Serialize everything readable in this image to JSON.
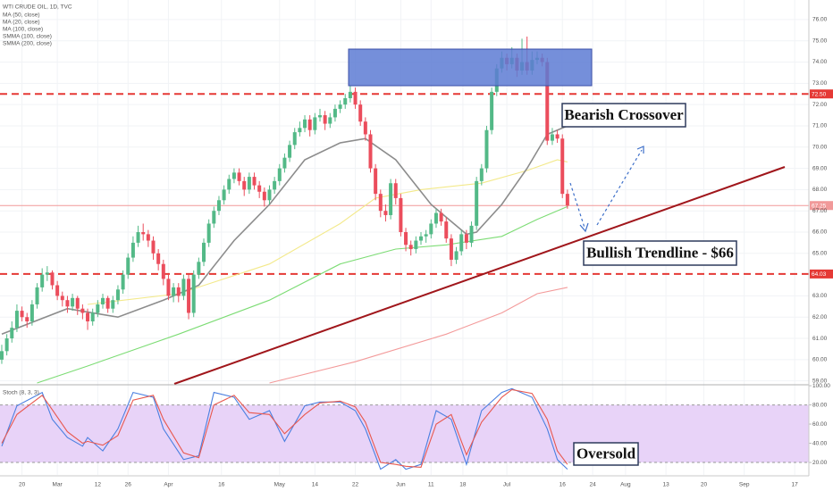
{
  "chart_data": {
    "type": "candlestick",
    "title": "WTI CRUDE OIL, 1D, TVC",
    "up_color": "#53b987",
    "down_color": "#eb4d5c",
    "grid": true,
    "xlim": [
      -0.35,
      159.8
    ],
    "xticks": [
      {
        "value": 4,
        "label": "20"
      },
      {
        "value": 11,
        "label": "Mar"
      },
      {
        "value": 19,
        "label": "12"
      },
      {
        "value": 25,
        "label": "26"
      },
      {
        "value": 33,
        "label": "Apr"
      },
      {
        "value": 43.5,
        "label": "16"
      },
      {
        "value": 55,
        "label": "May"
      },
      {
        "value": 62,
        "label": "14"
      },
      {
        "value": 70,
        "label": "22"
      },
      {
        "value": 79,
        "label": "Jun"
      },
      {
        "value": 85,
        "label": "11"
      },
      {
        "value": 91.3,
        "label": "18"
      },
      {
        "value": 100,
        "label": "Jul"
      },
      {
        "value": 111,
        "label": "16"
      },
      {
        "value": 117,
        "label": "24"
      },
      {
        "value": 123.5,
        "label": "Aug"
      },
      {
        "value": 131.5,
        "label": "13"
      },
      {
        "value": 139,
        "label": "20"
      },
      {
        "value": 147,
        "label": "Sep"
      },
      {
        "value": 157,
        "label": "17"
      }
    ],
    "ylim": [
      58.86,
      76.92
    ],
    "yticks": [
      {
        "value": 59,
        "label": "59.00"
      },
      {
        "value": 60,
        "label": "60.00"
      },
      {
        "value": 61,
        "label": "61.00"
      },
      {
        "value": 62,
        "label": "62.00"
      },
      {
        "value": 63,
        "label": "63.00"
      },
      {
        "value": 65,
        "label": "65.00"
      },
      {
        "value": 66,
        "label": "66.00"
      },
      {
        "value": 67,
        "label": "67.00"
      },
      {
        "value": 68,
        "label": "68.00"
      },
      {
        "value": 69,
        "label": "69.00"
      },
      {
        "value": 70,
        "label": "70.00"
      },
      {
        "value": 71,
        "label": "71.00"
      },
      {
        "value": 72,
        "label": "72.00"
      },
      {
        "value": 73,
        "label": "73.00"
      },
      {
        "value": 74,
        "label": "74.00"
      },
      {
        "value": 75,
        "label": "75.00"
      },
      {
        "value": 76,
        "label": "76.00"
      }
    ],
    "candles": [
      [
        60.0,
        60.7,
        59.8,
        60.4
      ],
      [
        60.4,
        61.2,
        60.2,
        61.0
      ],
      [
        61.0,
        61.8,
        60.8,
        61.5
      ],
      [
        61.5,
        62.6,
        61.3,
        62.3
      ],
      [
        62.3,
        62.5,
        61.8,
        62.0
      ],
      [
        62.0,
        62.2,
        61.5,
        61.8
      ],
      [
        61.8,
        62.8,
        61.6,
        62.6
      ],
      [
        62.6,
        63.6,
        62.4,
        63.4
      ],
      [
        63.4,
        64.3,
        63.2,
        64.0
      ],
      [
        64.0,
        64.4,
        63.7,
        64.1
      ],
      [
        64.1,
        64.2,
        63.3,
        63.5
      ],
      [
        63.5,
        63.7,
        62.8,
        63.0
      ],
      [
        63.0,
        63.2,
        62.5,
        62.8
      ],
      [
        62.8,
        63.0,
        62.2,
        62.5
      ],
      [
        62.5,
        63.1,
        62.3,
        62.9
      ],
      [
        62.9,
        63.0,
        62.1,
        62.4
      ],
      [
        62.4,
        62.6,
        61.9,
        62.2
      ],
      [
        62.2,
        62.4,
        61.4,
        61.8
      ],
      [
        61.8,
        62.4,
        61.6,
        62.2
      ],
      [
        62.2,
        62.8,
        62.0,
        62.6
      ],
      [
        62.6,
        63.1,
        62.4,
        62.9
      ],
      [
        62.9,
        63.0,
        62.2,
        62.4
      ],
      [
        62.4,
        63.0,
        62.2,
        62.8
      ],
      [
        62.8,
        63.5,
        62.6,
        63.3
      ],
      [
        63.3,
        64.2,
        63.1,
        64.0
      ],
      [
        64.0,
        65.0,
        63.8,
        64.8
      ],
      [
        64.8,
        65.8,
        64.6,
        65.5
      ],
      [
        65.5,
        66.3,
        65.3,
        66.0
      ],
      [
        66.0,
        66.4,
        65.6,
        65.9
      ],
      [
        65.9,
        66.1,
        65.3,
        65.6
      ],
      [
        65.6,
        65.8,
        64.7,
        65.0
      ],
      [
        65.0,
        65.2,
        64.2,
        64.5
      ],
      [
        64.5,
        64.7,
        63.5,
        63.8
      ],
      [
        63.8,
        64.0,
        62.8,
        63.0
      ],
      [
        63.0,
        63.6,
        62.7,
        63.4
      ],
      [
        63.4,
        63.6,
        62.7,
        63.0
      ],
      [
        63.0,
        64.0,
        62.8,
        63.8
      ],
      [
        63.8,
        64.0,
        61.9,
        62.2
      ],
      [
        62.2,
        64.2,
        62.0,
        64.0
      ],
      [
        64.0,
        64.8,
        63.8,
        64.6
      ],
      [
        64.6,
        65.7,
        64.4,
        65.5
      ],
      [
        65.5,
        66.6,
        65.3,
        66.4
      ],
      [
        66.4,
        67.2,
        66.2,
        67.0
      ],
      [
        67.0,
        67.7,
        66.8,
        67.5
      ],
      [
        67.5,
        68.2,
        67.3,
        68.0
      ],
      [
        68.0,
        68.7,
        67.8,
        68.5
      ],
      [
        68.5,
        69.0,
        68.3,
        68.8
      ],
      [
        68.8,
        69.0,
        68.2,
        68.4
      ],
      [
        68.4,
        68.6,
        67.7,
        68.0
      ],
      [
        68.0,
        68.8,
        67.8,
        68.6
      ],
      [
        68.6,
        68.8,
        68.0,
        68.2
      ],
      [
        68.2,
        68.4,
        67.6,
        67.9
      ],
      [
        67.9,
        68.1,
        67.2,
        67.5
      ],
      [
        67.5,
        68.2,
        67.3,
        68.0
      ],
      [
        68.0,
        68.6,
        67.8,
        68.4
      ],
      [
        68.4,
        69.2,
        68.2,
        69.0
      ],
      [
        69.0,
        69.7,
        68.8,
        69.5
      ],
      [
        69.5,
        70.3,
        69.3,
        70.1
      ],
      [
        70.1,
        70.9,
        69.9,
        70.7
      ],
      [
        70.7,
        71.2,
        70.5,
        70.9
      ],
      [
        70.9,
        71.5,
        70.7,
        71.3
      ],
      [
        71.3,
        71.5,
        70.5,
        70.8
      ],
      [
        70.8,
        71.6,
        70.6,
        71.4
      ],
      [
        71.4,
        71.8,
        71.2,
        71.5
      ],
      [
        71.5,
        71.7,
        70.8,
        71.1
      ],
      [
        71.1,
        71.6,
        70.9,
        71.4
      ],
      [
        71.4,
        72.0,
        71.2,
        71.8
      ],
      [
        71.8,
        72.2,
        71.6,
        72.0
      ],
      [
        72.0,
        72.5,
        71.8,
        72.3
      ],
      [
        72.3,
        72.9,
        72.1,
        72.6
      ],
      [
        72.6,
        72.8,
        71.8,
        72.0
      ],
      [
        72.0,
        72.2,
        71.0,
        71.2
      ],
      [
        71.2,
        71.4,
        70.3,
        70.6
      ],
      [
        70.6,
        70.8,
        68.8,
        69.0
      ],
      [
        69.0,
        69.2,
        67.5,
        67.8
      ],
      [
        67.8,
        68.0,
        66.7,
        67.0
      ],
      [
        67.0,
        67.3,
        66.5,
        66.8
      ],
      [
        66.8,
        68.5,
        66.6,
        68.3
      ],
      [
        68.3,
        68.5,
        67.3,
        67.6
      ],
      [
        67.6,
        67.8,
        65.8,
        66.0
      ],
      [
        66.0,
        66.2,
        65.1,
        65.4
      ],
      [
        65.4,
        65.6,
        64.9,
        65.2
      ],
      [
        65.2,
        65.8,
        65.0,
        65.6
      ],
      [
        65.6,
        66.0,
        65.4,
        65.8
      ],
      [
        65.8,
        66.1,
        65.5,
        65.9
      ],
      [
        65.9,
        66.6,
        65.7,
        66.4
      ],
      [
        66.4,
        67.1,
        66.2,
        66.9
      ],
      [
        66.9,
        67.1,
        66.3,
        66.5
      ],
      [
        66.5,
        66.7,
        65.5,
        65.7
      ],
      [
        65.7,
        65.9,
        64.4,
        64.7
      ],
      [
        64.7,
        65.3,
        64.5,
        65.1
      ],
      [
        65.1,
        66.1,
        64.9,
        65.9
      ],
      [
        65.9,
        66.1,
        65.2,
        65.5
      ],
      [
        65.5,
        66.5,
        65.3,
        66.3
      ],
      [
        66.3,
        68.6,
        66.1,
        68.4
      ],
      [
        68.4,
        69.2,
        68.2,
        69.0
      ],
      [
        69.0,
        71.0,
        68.8,
        70.8
      ],
      [
        70.8,
        72.8,
        70.6,
        72.6
      ],
      [
        72.6,
        73.9,
        72.4,
        73.7
      ],
      [
        73.7,
        74.5,
        73.5,
        74.2
      ],
      [
        74.2,
        74.4,
        73.6,
        73.9
      ],
      [
        73.9,
        74.7,
        73.7,
        74.2
      ],
      [
        74.2,
        74.4,
        73.3,
        73.6
      ],
      [
        73.6,
        75.1,
        73.4,
        74.0
      ],
      [
        74.0,
        75.2,
        73.4,
        73.6
      ],
      [
        73.6,
        74.5,
        73.4,
        74.1
      ],
      [
        74.1,
        74.5,
        73.9,
        74.2
      ],
      [
        74.2,
        74.4,
        73.8,
        74.0
      ],
      [
        74.0,
        74.2,
        70.1,
        70.3
      ],
      [
        70.3,
        70.9,
        70.1,
        70.6
      ],
      [
        70.6,
        70.8,
        70.2,
        70.4
      ],
      [
        70.4,
        70.6,
        67.6,
        67.8
      ],
      [
        67.8,
        68.0,
        67.1,
        67.25
      ]
    ],
    "series": [
      {
        "name": "MA (50, close)",
        "color": "#f3e98a",
        "x": [
          17,
          35,
          53,
          67,
          74,
          83,
          95,
          104,
          110,
          112
        ],
        "values": [
          62.6,
          63.1,
          64.5,
          66.4,
          67.6,
          68.0,
          68.3,
          68.9,
          69.4,
          69.3
        ]
      },
      {
        "name": "MA (20, close)",
        "color": "#8c8c8c",
        "x": [
          0,
          13,
          23,
          32,
          39,
          46,
          53,
          60,
          67,
          72,
          78,
          85,
          92,
          94,
          99,
          104,
          108,
          112
        ],
        "values": [
          61.2,
          62.4,
          62.0,
          62.8,
          63.5,
          65.6,
          67.3,
          69.4,
          70.2,
          70.4,
          69.4,
          67.3,
          65.9,
          66.0,
          67.3,
          69.0,
          70.6,
          71.0
        ]
      },
      {
        "name": "MA (100, close)",
        "color": "#7cdc74",
        "x": [
          7,
          17,
          35,
          53,
          67,
          78,
          88,
          99,
          106,
          112
        ],
        "values": [
          58.9,
          59.7,
          61.2,
          62.8,
          64.5,
          65.2,
          65.4,
          65.8,
          66.6,
          67.2
        ]
      },
      {
        "name": "SMMA (100, close)",
        "color": "#2962ff"
      },
      {
        "name": "SMMA (200, close)",
        "color": "#f39a9a",
        "x": [
          53,
          70,
          88,
          99,
          106,
          112
        ],
        "values": [
          58.9,
          59.9,
          61.2,
          62.2,
          63.1,
          63.4
        ]
      }
    ],
    "hlines": [
      {
        "value": 72.5,
        "label": "72.50",
        "color": "#e53935",
        "style": "dashed"
      },
      {
        "value": 64.03,
        "label": "64.03",
        "color": "#e53935",
        "style": "dashed"
      },
      {
        "value": 67.25,
        "label": "67.25",
        "color": "#f19999",
        "style": "solid"
      }
    ],
    "annotations": [
      "Bearish Crossover",
      "Bullish Trendline - $66",
      "Oversold"
    ],
    "stoch": {
      "title": "Stoch (8, 3, 3)",
      "ylim": [
        7,
        101
      ],
      "yticks": [
        {
          "value": 100,
          "label": "100.00"
        },
        {
          "value": 80,
          "label": "80.00"
        },
        {
          "value": 60,
          "label": "60.00"
        },
        {
          "value": 40,
          "label": "40.00"
        },
        {
          "value": 20,
          "label": "20.00"
        }
      ],
      "band": [
        20,
        80
      ],
      "band_color": "#e8d3f8",
      "series": [
        {
          "color": "#4a7fe0",
          "x": [
            0,
            3,
            8,
            10,
            13,
            16,
            17,
            20,
            23,
            26,
            30,
            32,
            36,
            39,
            42,
            46,
            49,
            53,
            56,
            60,
            63,
            67,
            70,
            72,
            75,
            78,
            80,
            83,
            86,
            89,
            92,
            95,
            99,
            101,
            105,
            108,
            110,
            112
          ],
          "values": [
            37,
            79,
            93,
            65,
            46,
            37,
            46,
            32,
            55,
            93,
            88,
            55,
            23,
            27,
            93,
            88,
            65,
            74,
            42,
            79,
            83,
            83,
            74,
            55,
            13,
            23,
            13,
            18,
            74,
            65,
            18,
            74,
            93,
            97,
            88,
            55,
            23,
            13
          ]
        },
        {
          "color": "#e8584f",
          "x": [
            0,
            3,
            8,
            10,
            13,
            16,
            17,
            20,
            23,
            26,
            30,
            32,
            36,
            39,
            42,
            46,
            49,
            53,
            56,
            60,
            63,
            67,
            70,
            72,
            75,
            78,
            80,
            83,
            86,
            89,
            92,
            95,
            99,
            101,
            105,
            108,
            110,
            112
          ],
          "values": [
            40,
            70,
            90,
            75,
            52,
            40,
            42,
            38,
            48,
            85,
            90,
            65,
            30,
            25,
            80,
            90,
            72,
            70,
            50,
            70,
            82,
            84,
            78,
            62,
            20,
            18,
            16,
            15,
            60,
            70,
            28,
            62,
            88,
            96,
            92,
            65,
            32,
            18
          ]
        }
      ]
    }
  }
}
